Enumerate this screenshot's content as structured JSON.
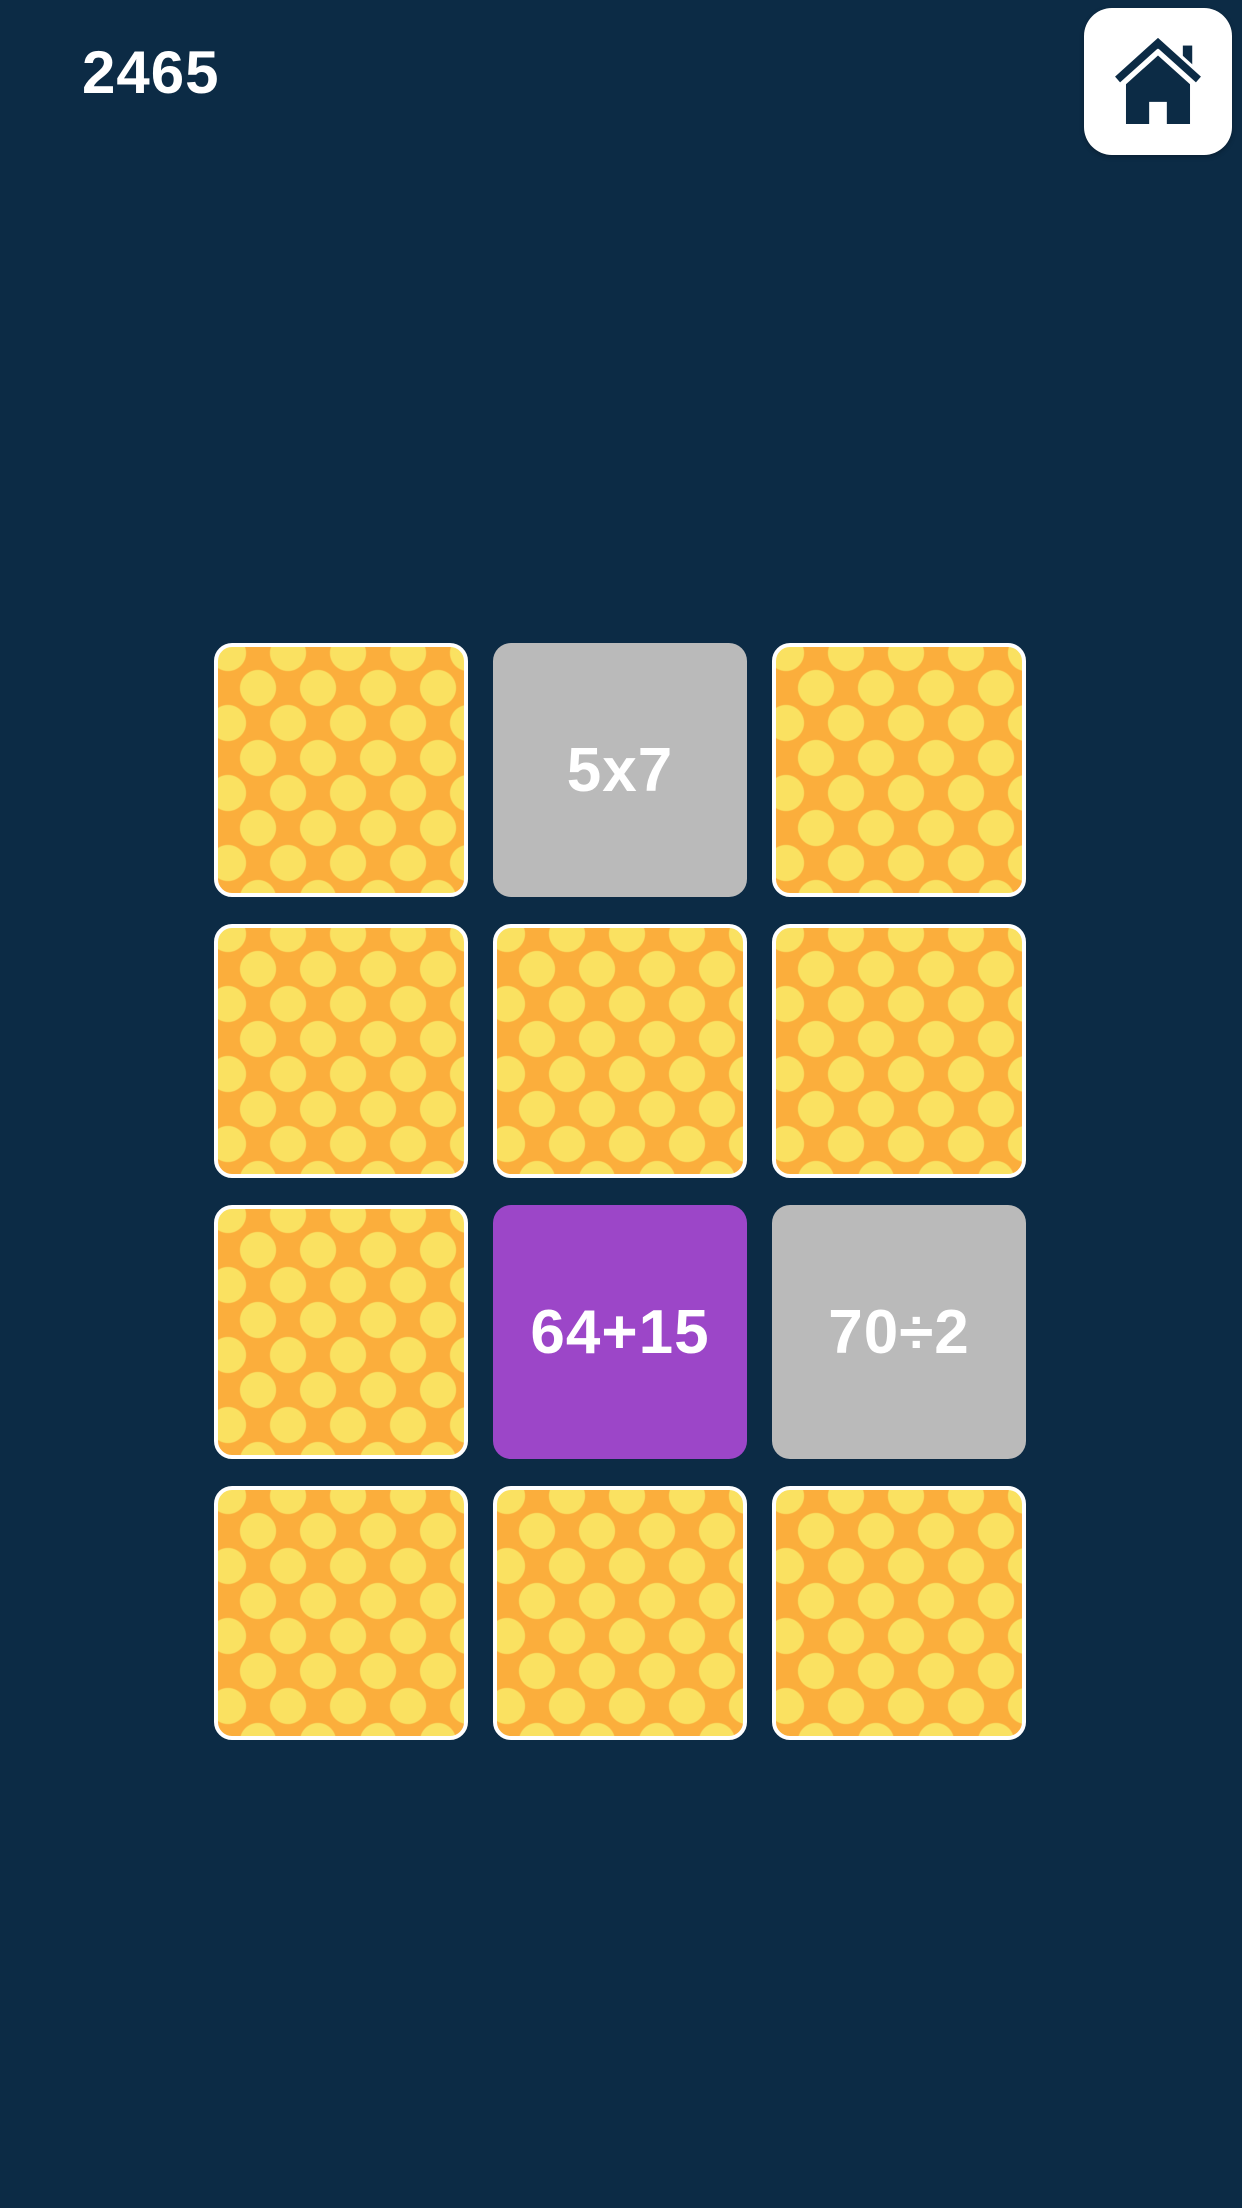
{
  "header": {
    "score": "2465"
  },
  "home_button": {
    "icon": "home-icon"
  },
  "colors": {
    "background": "#0C2B45",
    "card_back": "#FBAE3C",
    "card_back_dots": "#FAE161",
    "card_front_gray": "#BABABA",
    "card_front_purple": "#9C46C8",
    "card_border": "#FFFFFF",
    "text": "#FFFFFF"
  },
  "board": {
    "rows": 4,
    "columns": 3,
    "cards": [
      {
        "state": "back",
        "label": ""
      },
      {
        "state": "gray",
        "label": "5x7"
      },
      {
        "state": "back",
        "label": ""
      },
      {
        "state": "back",
        "label": ""
      },
      {
        "state": "back",
        "label": ""
      },
      {
        "state": "back",
        "label": ""
      },
      {
        "state": "back",
        "label": ""
      },
      {
        "state": "purple",
        "label": "64+15"
      },
      {
        "state": "gray",
        "label": "70÷2"
      },
      {
        "state": "back",
        "label": ""
      },
      {
        "state": "back",
        "label": ""
      },
      {
        "state": "back",
        "label": ""
      }
    ]
  }
}
